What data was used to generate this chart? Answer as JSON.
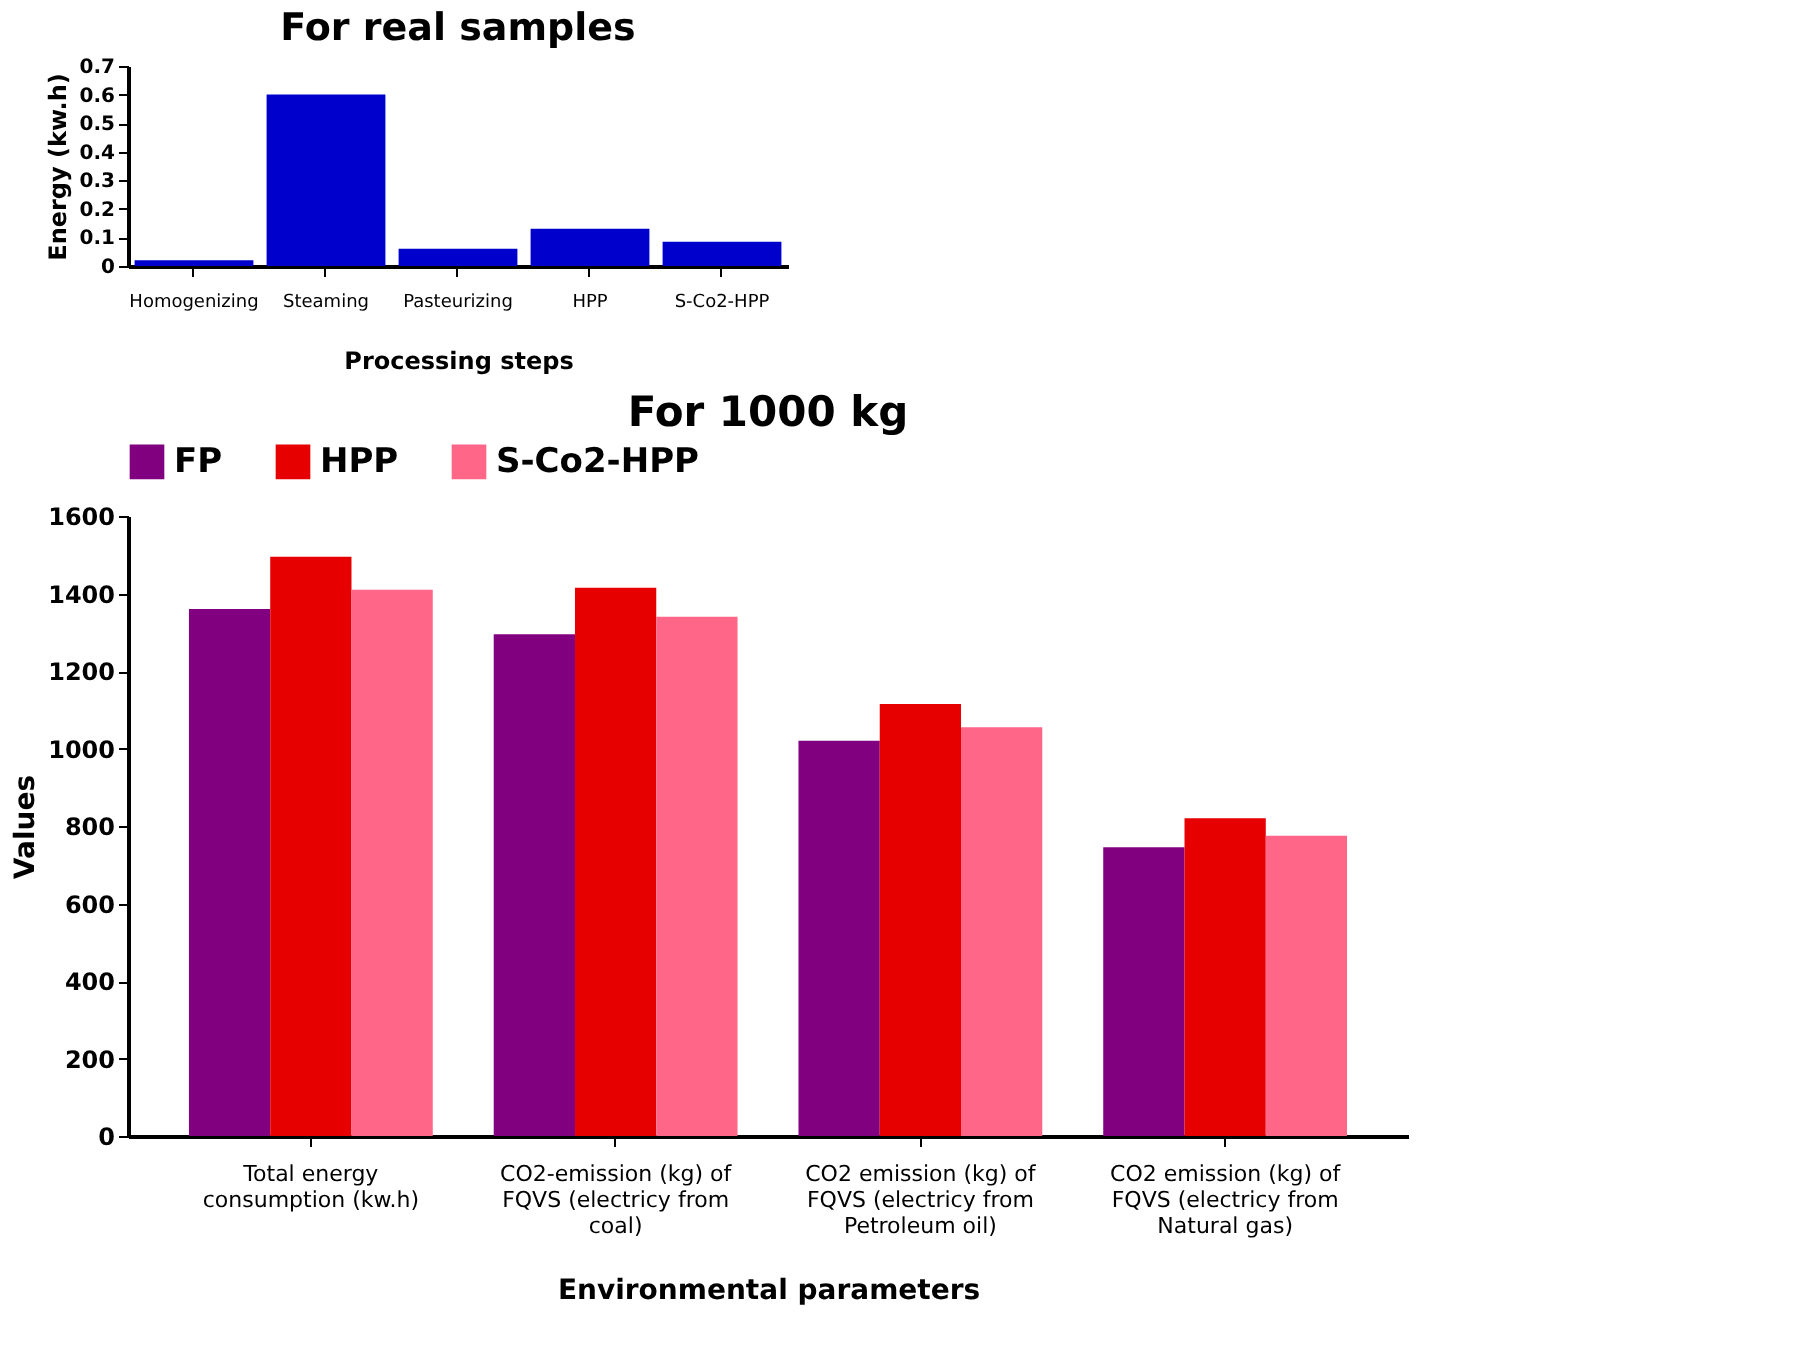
{
  "chart_data": [
    {
      "type": "bar",
      "title": "For real samples",
      "xlabel": "Processing steps",
      "ylabel": "Energy (kw.h)",
      "categories": [
        "Homogenizing",
        "Steaming",
        "Pasteurizing",
        "HPP",
        "S-Co2-HPP"
      ],
      "values": [
        0.02,
        0.6,
        0.06,
        0.13,
        0.085
      ],
      "color": "#0000cc",
      "ylim": [
        0,
        0.7
      ],
      "yticks": [
        {
          "value": 0,
          "label": "0"
        },
        0.1,
        0.2,
        0.3,
        0.4,
        0.5,
        0.6,
        0.7
      ],
      "grid": false,
      "legend": false
    },
    {
      "type": "bar",
      "title": "For 1000 kg",
      "xlabel": "Environmental parameters",
      "ylabel": "Values",
      "categories": [
        "Total energy consumption (kw.h)",
        "CO2-emission (kg) of FQVS (electricy from coal)",
        "CO2 emission (kg) of FQVS (electricy from Petroleum oil)",
        "CO2 emission (kg) of FQVS (electricy from Natural gas)"
      ],
      "series": [
        {
          "name": "FP",
          "color": "#800080",
          "values": [
            1360,
            1295,
            1020,
            745
          ]
        },
        {
          "name": "HPP",
          "color": "#e60000",
          "values": [
            1495,
            1415,
            1115,
            820
          ]
        },
        {
          "name": "S-Co2-HPP",
          "color": "#ff6688",
          "values": [
            1410,
            1340,
            1055,
            775
          ]
        }
      ],
      "ylim": [
        0,
        1600
      ],
      "yticks": [
        0,
        200,
        400,
        600,
        800,
        1000,
        1200,
        1400,
        1600
      ],
      "grid": false,
      "legend": "top"
    }
  ]
}
